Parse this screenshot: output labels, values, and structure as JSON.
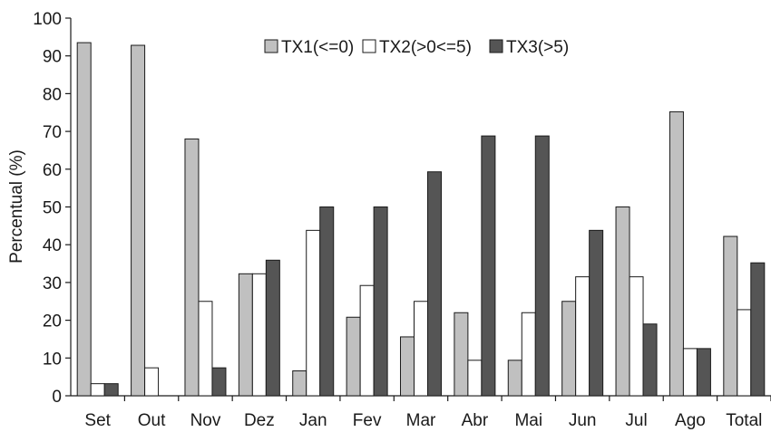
{
  "chart_data": {
    "type": "bar",
    "title": "",
    "xlabel": "",
    "ylabel": "Percentual (%)",
    "ylim": [
      0,
      100
    ],
    "yticks": [
      0,
      10,
      20,
      30,
      40,
      50,
      60,
      70,
      80,
      90,
      100
    ],
    "grid": false,
    "legend_position": "top-right",
    "categories": [
      "Set",
      "Out",
      "Nov",
      "Dez",
      "Jan",
      "Fev",
      "Mar",
      "Abr",
      "Mai",
      "Jun",
      "Jul",
      "Ago",
      "Total"
    ],
    "series": [
      {
        "name": "TX1(<=0)",
        "color": "#c0c0c0",
        "values": [
          93.5,
          92.8,
          68.0,
          32.3,
          6.6,
          20.8,
          15.6,
          22.0,
          9.4,
          25.0,
          50.0,
          75.2,
          42.2
        ]
      },
      {
        "name": "TX2(>0<=5)",
        "color": "#ffffff",
        "values": [
          3.2,
          7.4,
          25.0,
          32.3,
          43.8,
          29.2,
          25.0,
          9.4,
          22.0,
          31.5,
          31.5,
          12.5,
          22.8
        ]
      },
      {
        "name": "TX3(>5)",
        "color": "#555555",
        "values": [
          3.2,
          0,
          7.4,
          35.9,
          50.0,
          50.0,
          59.3,
          68.8,
          68.8,
          43.8,
          19.0,
          12.5,
          35.2
        ]
      }
    ]
  }
}
